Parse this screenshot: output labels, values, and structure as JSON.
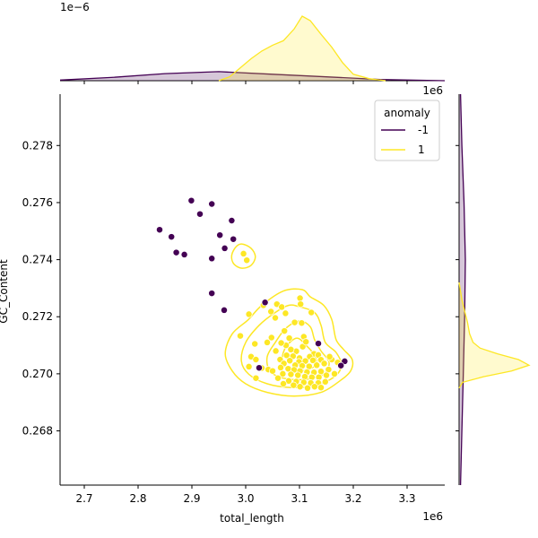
{
  "chart_data": {
    "type": "scatter",
    "title": "",
    "xlabel": "total_length",
    "ylabel": "GC_Content",
    "x_offset_label": "1e6",
    "y_offset_label_top_marginal": "1e−6",
    "x_offset_label_right_marginal": "1e6",
    "xlim": [
      2.655,
      3.37
    ],
    "ylim": [
      0.2661,
      0.2798
    ],
    "xticks": [
      2.7,
      2.8,
      2.9,
      3.0,
      3.1,
      3.2,
      3.3
    ],
    "xtick_labels": [
      "2.7",
      "2.8",
      "2.9",
      "3.0",
      "3.1",
      "3.2",
      "3.3"
    ],
    "yticks": [
      0.268,
      0.27,
      0.272,
      0.274,
      0.276,
      0.278
    ],
    "ytick_labels": [
      "0.268",
      "0.270",
      "0.272",
      "0.274",
      "0.276",
      "0.278"
    ],
    "grid": false,
    "legend": {
      "title": "anomaly",
      "placement": "top-right",
      "entries": [
        {
          "label": "-1",
          "color": "#440154"
        },
        {
          "label": "1",
          "color": "#fde725"
        }
      ]
    },
    "series": [
      {
        "name": "-1",
        "color": "#440154",
        "points": [
          [
            2.84,
            0.27505
          ],
          [
            2.862,
            0.2748
          ],
          [
            2.871,
            0.27425
          ],
          [
            2.886,
            0.27418
          ],
          [
            2.899,
            0.27607
          ],
          [
            2.915,
            0.2756
          ],
          [
            2.937,
            0.27595
          ],
          [
            2.937,
            0.27404
          ],
          [
            2.952,
            0.27486
          ],
          [
            2.961,
            0.2744
          ],
          [
            2.974,
            0.27537
          ],
          [
            2.977,
            0.27472
          ],
          [
            2.937,
            0.27282
          ],
          [
            2.96,
            0.27223
          ],
          [
            3.036,
            0.2725
          ],
          [
            3.135,
            0.27106
          ],
          [
            3.184,
            0.27044
          ],
          [
            3.177,
            0.27029
          ],
          [
            3.025,
            0.27021
          ]
        ]
      },
      {
        "name": "1",
        "color": "#fde725",
        "points": [
          [
            2.996,
            0.27421
          ],
          [
            3.002,
            0.27398
          ],
          [
            3.101,
            0.27265
          ],
          [
            3.102,
            0.27244
          ],
          [
            3.058,
            0.27244
          ],
          [
            3.067,
            0.27234
          ],
          [
            3.033,
            0.2724
          ],
          [
            3.047,
            0.27218
          ],
          [
            3.074,
            0.27212
          ],
          [
            3.122,
            0.27215
          ],
          [
            3.006,
            0.27209
          ],
          [
            3.055,
            0.27196
          ],
          [
            3.091,
            0.2718
          ],
          [
            3.104,
            0.27178
          ],
          [
            3.072,
            0.2715
          ],
          [
            3.048,
            0.27127
          ],
          [
            3.108,
            0.2713
          ],
          [
            3.04,
            0.2711
          ],
          [
            3.075,
            0.271
          ],
          [
            3.106,
            0.27095
          ],
          [
            3.127,
            0.2707
          ],
          [
            3.056,
            0.2708
          ],
          [
            3.017,
            0.27105
          ],
          [
            2.99,
            0.27133
          ],
          [
            3.094,
            0.27079
          ],
          [
            3.076,
            0.27065
          ],
          [
            3.088,
            0.27062
          ],
          [
            3.1,
            0.27055
          ],
          [
            3.119,
            0.2706
          ],
          [
            3.135,
            0.27066
          ],
          [
            3.01,
            0.2706
          ],
          [
            3.019,
            0.2705
          ],
          [
            3.064,
            0.2705
          ],
          [
            3.082,
            0.27046
          ],
          [
            3.099,
            0.27042
          ],
          [
            3.111,
            0.27045
          ],
          [
            3.125,
            0.27047
          ],
          [
            3.14,
            0.27049
          ],
          [
            3.16,
            0.2705
          ],
          [
            3.071,
            0.27036
          ],
          [
            3.092,
            0.2703
          ],
          [
            3.105,
            0.27028
          ],
          [
            3.118,
            0.27026
          ],
          [
            3.132,
            0.2703
          ],
          [
            3.146,
            0.27036
          ],
          [
            3.065,
            0.27022
          ],
          [
            3.079,
            0.27018
          ],
          [
            3.09,
            0.27014
          ],
          [
            3.101,
            0.2701
          ],
          [
            3.114,
            0.27006
          ],
          [
            3.127,
            0.27005
          ],
          [
            3.14,
            0.27008
          ],
          [
            3.154,
            0.27015
          ],
          [
            3.042,
            0.27015
          ],
          [
            3.03,
            0.2702
          ],
          [
            3.006,
            0.27025
          ],
          [
            3.05,
            0.2701
          ],
          [
            3.069,
            0.27
          ],
          [
            3.084,
            0.26998
          ],
          [
            3.097,
            0.26995
          ],
          [
            3.11,
            0.2699
          ],
          [
            3.123,
            0.26988
          ],
          [
            3.136,
            0.26988
          ],
          [
            3.15,
            0.26995
          ],
          [
            3.165,
            0.27
          ],
          [
            3.08,
            0.26975
          ],
          [
            3.094,
            0.26973
          ],
          [
            3.108,
            0.2697
          ],
          [
            3.121,
            0.26968
          ],
          [
            3.135,
            0.26968
          ],
          [
            3.148,
            0.26972
          ],
          [
            3.06,
            0.26985
          ],
          [
            3.101,
            0.26955
          ],
          [
            3.115,
            0.2695
          ],
          [
            3.128,
            0.26955
          ],
          [
            3.14,
            0.26952
          ],
          [
            3.089,
            0.2696
          ],
          [
            3.07,
            0.26965
          ],
          [
            3.019,
            0.26985
          ],
          [
            3.171,
            0.2704
          ],
          [
            3.156,
            0.2706
          ],
          [
            3.084,
            0.27085
          ],
          [
            3.066,
            0.27108
          ],
          [
            3.081,
            0.27125
          ],
          [
            3.112,
            0.27112
          ]
        ]
      }
    ],
    "marginal_x": {
      "series": [
        {
          "name": "-1",
          "color": "#440154",
          "fill": "rgba(68,1,84,0.22)",
          "x": [
            2.655,
            2.75,
            2.85,
            2.95,
            3.05,
            3.15,
            3.25,
            3.37
          ],
          "y": [
            0.01,
            0.05,
            0.11,
            0.14,
            0.1,
            0.06,
            0.02,
            0.0
          ]
        },
        {
          "name": "1",
          "color": "#fde725",
          "fill": "rgba(253,231,37,0.22)",
          "x": [
            2.95,
            2.97,
            2.99,
            3.01,
            3.03,
            3.05,
            3.07,
            3.09,
            3.105,
            3.12,
            3.14,
            3.16,
            3.18,
            3.2,
            3.23,
            3.26
          ],
          "y": [
            0.0,
            0.06,
            0.2,
            0.34,
            0.46,
            0.55,
            0.62,
            0.8,
            1.0,
            0.93,
            0.72,
            0.52,
            0.28,
            0.1,
            0.03,
            0.0
          ]
        }
      ]
    },
    "marginal_y": {
      "series": [
        {
          "name": "-1",
          "color": "#440154",
          "fill": "rgba(68,1,84,0.22)",
          "y": [
            0.2661,
            0.268,
            0.27,
            0.272,
            0.274,
            0.276,
            0.278,
            0.2798
          ],
          "x": [
            0.02,
            0.04,
            0.06,
            0.08,
            0.09,
            0.07,
            0.04,
            0.02
          ]
        },
        {
          "name": "1",
          "color": "#fde725",
          "fill": "rgba(253,231,37,0.22)",
          "y": [
            0.2695,
            0.2697,
            0.2699,
            0.2701,
            0.2703,
            0.2705,
            0.2707,
            0.2709,
            0.2711,
            0.2714,
            0.2718,
            0.2722,
            0.2726,
            0.2732
          ],
          "x": [
            0.0,
            0.05,
            0.35,
            0.75,
            1.0,
            0.85,
            0.55,
            0.3,
            0.2,
            0.15,
            0.12,
            0.08,
            0.04,
            0.0
          ]
        }
      ]
    },
    "kde_contours_series_1": [
      [
        [
          3.12,
          0.2727
        ],
        [
          3.145,
          0.2724
        ],
        [
          3.16,
          0.2719
        ],
        [
          3.168,
          0.2712
        ],
        [
          3.182,
          0.27085
        ],
        [
          3.198,
          0.2705
        ],
        [
          3.195,
          0.2701
        ],
        [
          3.175,
          0.26975
        ],
        [
          3.14,
          0.26935
        ],
        [
          3.09,
          0.26922
        ],
        [
          3.04,
          0.26935
        ],
        [
          3.0,
          0.26965
        ],
        [
          2.975,
          0.2701
        ],
        [
          2.962,
          0.2707
        ],
        [
          2.975,
          0.2714
        ],
        [
          3.005,
          0.2719
        ],
        [
          3.03,
          0.2724
        ],
        [
          3.07,
          0.2729
        ],
        [
          3.105,
          0.27295
        ]
      ],
      [
        [
          3.1,
          0.27235
        ],
        [
          3.128,
          0.27215
        ],
        [
          3.14,
          0.2717
        ],
        [
          3.148,
          0.2711
        ],
        [
          3.168,
          0.27075
        ],
        [
          3.178,
          0.2703
        ],
        [
          3.165,
          0.2699
        ],
        [
          3.13,
          0.2696
        ],
        [
          3.085,
          0.26952
        ],
        [
          3.04,
          0.26965
        ],
        [
          3.006,
          0.26998
        ],
        [
          2.992,
          0.27045
        ],
        [
          3.0,
          0.2711
        ],
        [
          3.025,
          0.2717
        ],
        [
          3.055,
          0.27215
        ],
        [
          3.08,
          0.2724
        ]
      ],
      [
        [
          3.1,
          0.27185
        ],
        [
          3.12,
          0.27165
        ],
        [
          3.128,
          0.2712
        ],
        [
          3.14,
          0.2708
        ],
        [
          3.155,
          0.2704
        ],
        [
          3.145,
          0.27
        ],
        [
          3.11,
          0.2698
        ],
        [
          3.07,
          0.26985
        ],
        [
          3.045,
          0.2701
        ],
        [
          3.04,
          0.2706
        ],
        [
          3.055,
          0.2711
        ],
        [
          3.075,
          0.2716
        ]
      ],
      [
        [
          3.095,
          0.27125
        ],
        [
          3.112,
          0.271
        ],
        [
          3.128,
          0.27065
        ],
        [
          3.13,
          0.2703
        ],
        [
          3.105,
          0.2701
        ],
        [
          3.078,
          0.27018
        ],
        [
          3.068,
          0.2705
        ],
        [
          3.075,
          0.27095
        ]
      ],
      [
        [
          2.993,
          0.27455
        ],
        [
          3.01,
          0.2744
        ],
        [
          3.018,
          0.2741
        ],
        [
          3.01,
          0.2738
        ],
        [
          2.993,
          0.2737
        ],
        [
          2.978,
          0.27385
        ],
        [
          2.974,
          0.27415
        ],
        [
          2.982,
          0.27445
        ]
      ]
    ]
  }
}
